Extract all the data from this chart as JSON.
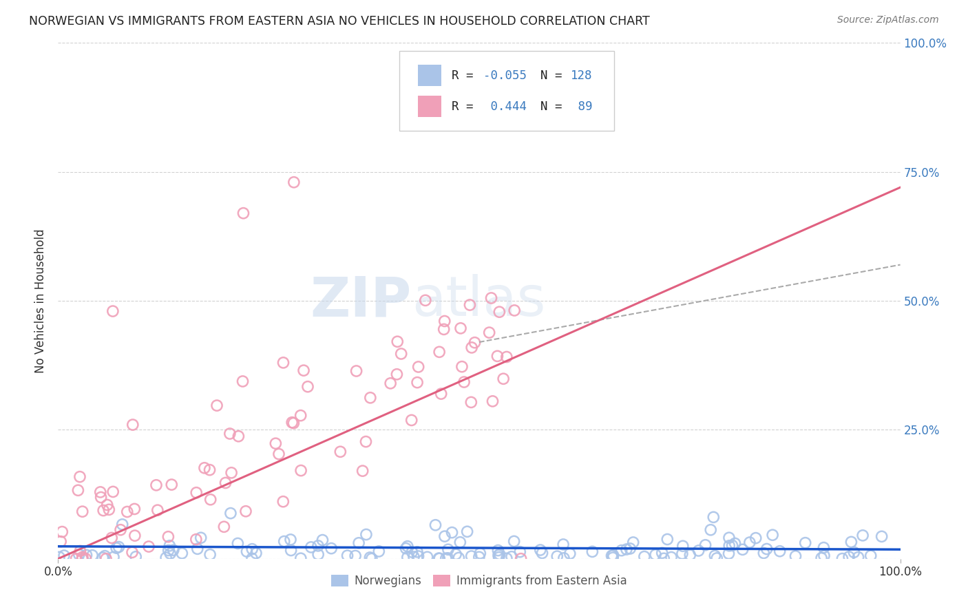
{
  "title": "NORWEGIAN VS IMMIGRANTS FROM EASTERN ASIA NO VEHICLES IN HOUSEHOLD CORRELATION CHART",
  "source": "Source: ZipAtlas.com",
  "ylabel": "No Vehicles in Household",
  "background_color": "#ffffff",
  "grid_color": "#cccccc",
  "watermark_zip": "ZIP",
  "watermark_atlas": "atlas",
  "norwegian_color": "#aac4e8",
  "immigrant_color": "#f0a0b8",
  "norwegian_line_color": "#1a56cc",
  "immigrant_line_color": "#e06080",
  "norwegian_dashed_color": "#bbbbbb",
  "title_color": "#1a56cc",
  "source_color": "#777777",
  "legend_color": "#3a7abf",
  "right_axis_color": "#3a7abf",
  "bottom_label_color": "#555555",
  "norwegian_R": -0.055,
  "norwegian_N": 128,
  "immigrant_R": 0.444,
  "immigrant_N": 89
}
